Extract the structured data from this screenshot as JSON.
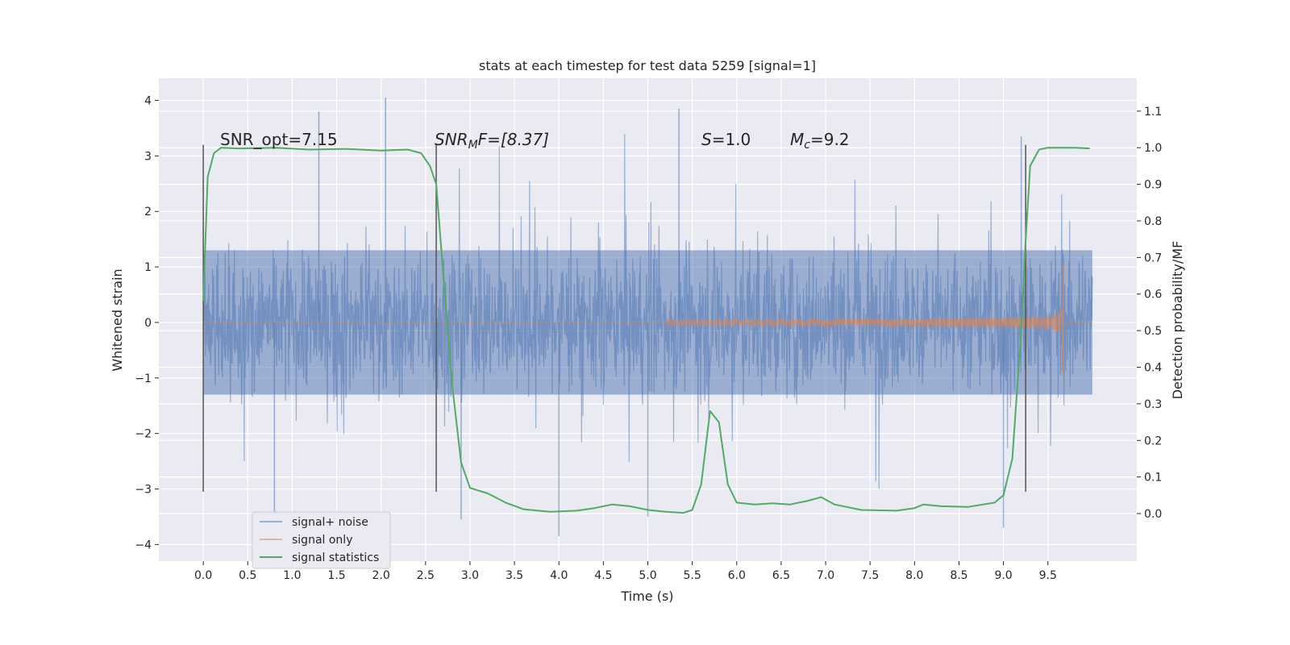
{
  "chart_data": {
    "type": "line",
    "title": "stats at each timestep for test data 5259 [signal=1]",
    "xlabel": "Time (s)",
    "ylabel": "Whitened strain",
    "y2label": "Detection probability/MF",
    "xlim": [
      -0.5,
      10.5
    ],
    "ylim": [
      -4.3,
      4.4
    ],
    "y2lim": [
      -0.13,
      1.19
    ],
    "x_ticks": [
      "0.0",
      "0.5",
      "1.0",
      "1.5",
      "2.0",
      "2.5",
      "3.0",
      "3.5",
      "4.0",
      "4.5",
      "5.0",
      "5.5",
      "6.0",
      "6.5",
      "7.0",
      "7.5",
      "8.0",
      "8.5",
      "9.0",
      "9.5"
    ],
    "y_ticks": [
      "4",
      "3",
      "2",
      "1",
      "0",
      "−1",
      "−2",
      "−3",
      "−4"
    ],
    "y2_ticks": [
      "1.1",
      "1.0",
      "0.9",
      "0.8",
      "0.7",
      "0.6",
      "0.5",
      "0.4",
      "0.3",
      "0.2",
      "0.1",
      "0.0"
    ],
    "grid": true,
    "legend_position": "lower-left",
    "legend": [
      "signal+ noise",
      "signal only",
      "signal statistics"
    ],
    "colors": {
      "plot_bg": "#eaeaf2",
      "grid": "#ffffff",
      "noise": "#4c72b0",
      "signal": "#dd8452",
      "stats": "#55a868",
      "vline": "#555555"
    },
    "annotations": {
      "snr_opt": "SNR_opt=7.15",
      "snr_mf_base": "SNR",
      "snr_mf_sub": "M",
      "snr_mf_rest": "F=[8.37]",
      "s_label": "S",
      "s_value": "=1.0",
      "mc_label": "M",
      "mc_sub": "c",
      "mc_value": "=9.2"
    },
    "vertical_lines_x": [
      0.0,
      2.62,
      9.25
    ],
    "vertical_lines_yrange": [
      -3.05,
      3.2
    ],
    "noise_series": {
      "name": "signal+ noise",
      "x_range": [
        0.0,
        10.0
      ],
      "typical_envelope": [
        -1.3,
        1.3
      ],
      "notable_peaks": [
        {
          "x": 2.05,
          "y": 4.05
        },
        {
          "x": 1.3,
          "y": 3.8
        },
        {
          "x": 5.35,
          "y": 3.85
        },
        {
          "x": 9.2,
          "y": 3.35
        },
        {
          "x": 4.0,
          "y": -3.85
        },
        {
          "x": 9.0,
          "y": -3.7
        },
        {
          "x": 2.9,
          "y": -3.55
        },
        {
          "x": 5.0,
          "y": -3.5
        },
        {
          "x": 0.8,
          "y": -3.45
        }
      ]
    },
    "signal_series": {
      "name": "signal only",
      "x_range": [
        5.2,
        9.67
      ],
      "peak_amplitude": {
        "x": 9.65,
        "y": 1.05
      },
      "trough_amplitude": {
        "x": 9.65,
        "y": -0.95
      }
    },
    "stats_series": {
      "name": "signal statistics",
      "x": [
        0.0,
        0.05,
        0.12,
        0.2,
        0.4,
        0.8,
        1.2,
        1.6,
        2.0,
        2.3,
        2.45,
        2.55,
        2.62,
        2.7,
        2.8,
        2.9,
        3.0,
        3.2,
        3.4,
        3.6,
        3.9,
        4.2,
        4.4,
        4.6,
        4.8,
        5.0,
        5.2,
        5.4,
        5.5,
        5.6,
        5.7,
        5.8,
        5.9,
        6.0,
        6.2,
        6.4,
        6.6,
        6.8,
        6.95,
        7.1,
        7.4,
        7.8,
        8.0,
        8.1,
        8.3,
        8.6,
        8.9,
        9.0,
        9.1,
        9.2,
        9.25,
        9.3,
        9.4,
        9.5,
        9.6,
        9.8,
        9.97
      ],
      "y": [
        0.58,
        0.92,
        0.985,
        1.0,
        0.998,
        1.0,
        0.995,
        0.997,
        0.992,
        0.995,
        0.985,
        0.95,
        0.9,
        0.65,
        0.35,
        0.14,
        0.07,
        0.055,
        0.03,
        0.012,
        0.005,
        0.008,
        0.015,
        0.025,
        0.02,
        0.01,
        0.005,
        0.002,
        0.01,
        0.08,
        0.28,
        0.25,
        0.08,
        0.03,
        0.025,
        0.028,
        0.025,
        0.035,
        0.045,
        0.025,
        0.01,
        0.008,
        0.015,
        0.025,
        0.02,
        0.018,
        0.03,
        0.05,
        0.15,
        0.5,
        0.75,
        0.95,
        0.995,
        1.0,
        1.0,
        1.0,
        0.998
      ]
    }
  }
}
